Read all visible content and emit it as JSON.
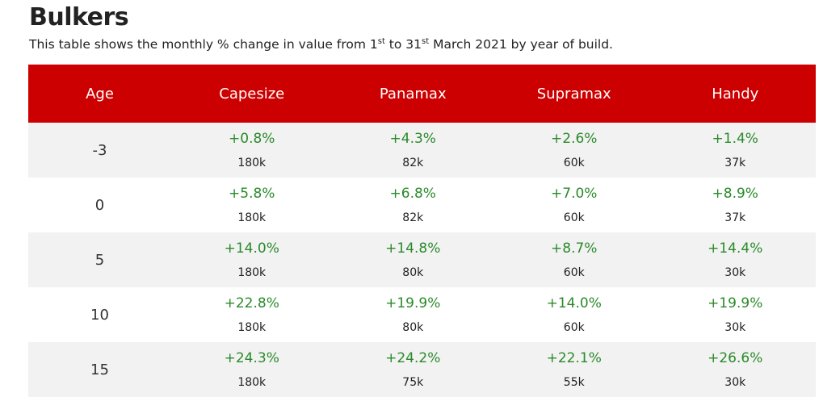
{
  "page": {
    "title": "Bulkers",
    "subtitle": {
      "part1": "This table shows the monthly % change in value from 1",
      "sup1": "st",
      "part2": " to 31",
      "sup2": "st",
      "part3": " March 2021 by year of build."
    }
  },
  "colors": {
    "header_bg": "#cc0000",
    "positive_text": "#2a8a2a",
    "row_alt_bg": "#f2f2f2"
  },
  "table": {
    "headers": [
      "Age",
      "Capesize",
      "Panamax",
      "Supramax",
      "Handy"
    ],
    "rows": [
      {
        "age": "-3",
        "cells": [
          {
            "pct": "+0.8%",
            "size": "180k"
          },
          {
            "pct": "+4.3%",
            "size": "82k"
          },
          {
            "pct": "+2.6%",
            "size": "60k"
          },
          {
            "pct": "+1.4%",
            "size": "37k"
          }
        ]
      },
      {
        "age": "0",
        "cells": [
          {
            "pct": "+5.8%",
            "size": "180k"
          },
          {
            "pct": "+6.8%",
            "size": "82k"
          },
          {
            "pct": "+7.0%",
            "size": "60k"
          },
          {
            "pct": "+8.9%",
            "size": "37k"
          }
        ]
      },
      {
        "age": "5",
        "cells": [
          {
            "pct": "+14.0%",
            "size": "180k"
          },
          {
            "pct": "+14.8%",
            "size": "80k"
          },
          {
            "pct": "+8.7%",
            "size": "60k"
          },
          {
            "pct": "+14.4%",
            "size": "30k"
          }
        ]
      },
      {
        "age": "10",
        "cells": [
          {
            "pct": "+22.8%",
            "size": "180k"
          },
          {
            "pct": "+19.9%",
            "size": "80k"
          },
          {
            "pct": "+14.0%",
            "size": "60k"
          },
          {
            "pct": "+19.9%",
            "size": "30k"
          }
        ]
      },
      {
        "age": "15",
        "cells": [
          {
            "pct": "+24.3%",
            "size": "180k"
          },
          {
            "pct": "+24.2%",
            "size": "75k"
          },
          {
            "pct": "+22.1%",
            "size": "55k"
          },
          {
            "pct": "+26.6%",
            "size": "30k"
          }
        ]
      }
    ]
  }
}
